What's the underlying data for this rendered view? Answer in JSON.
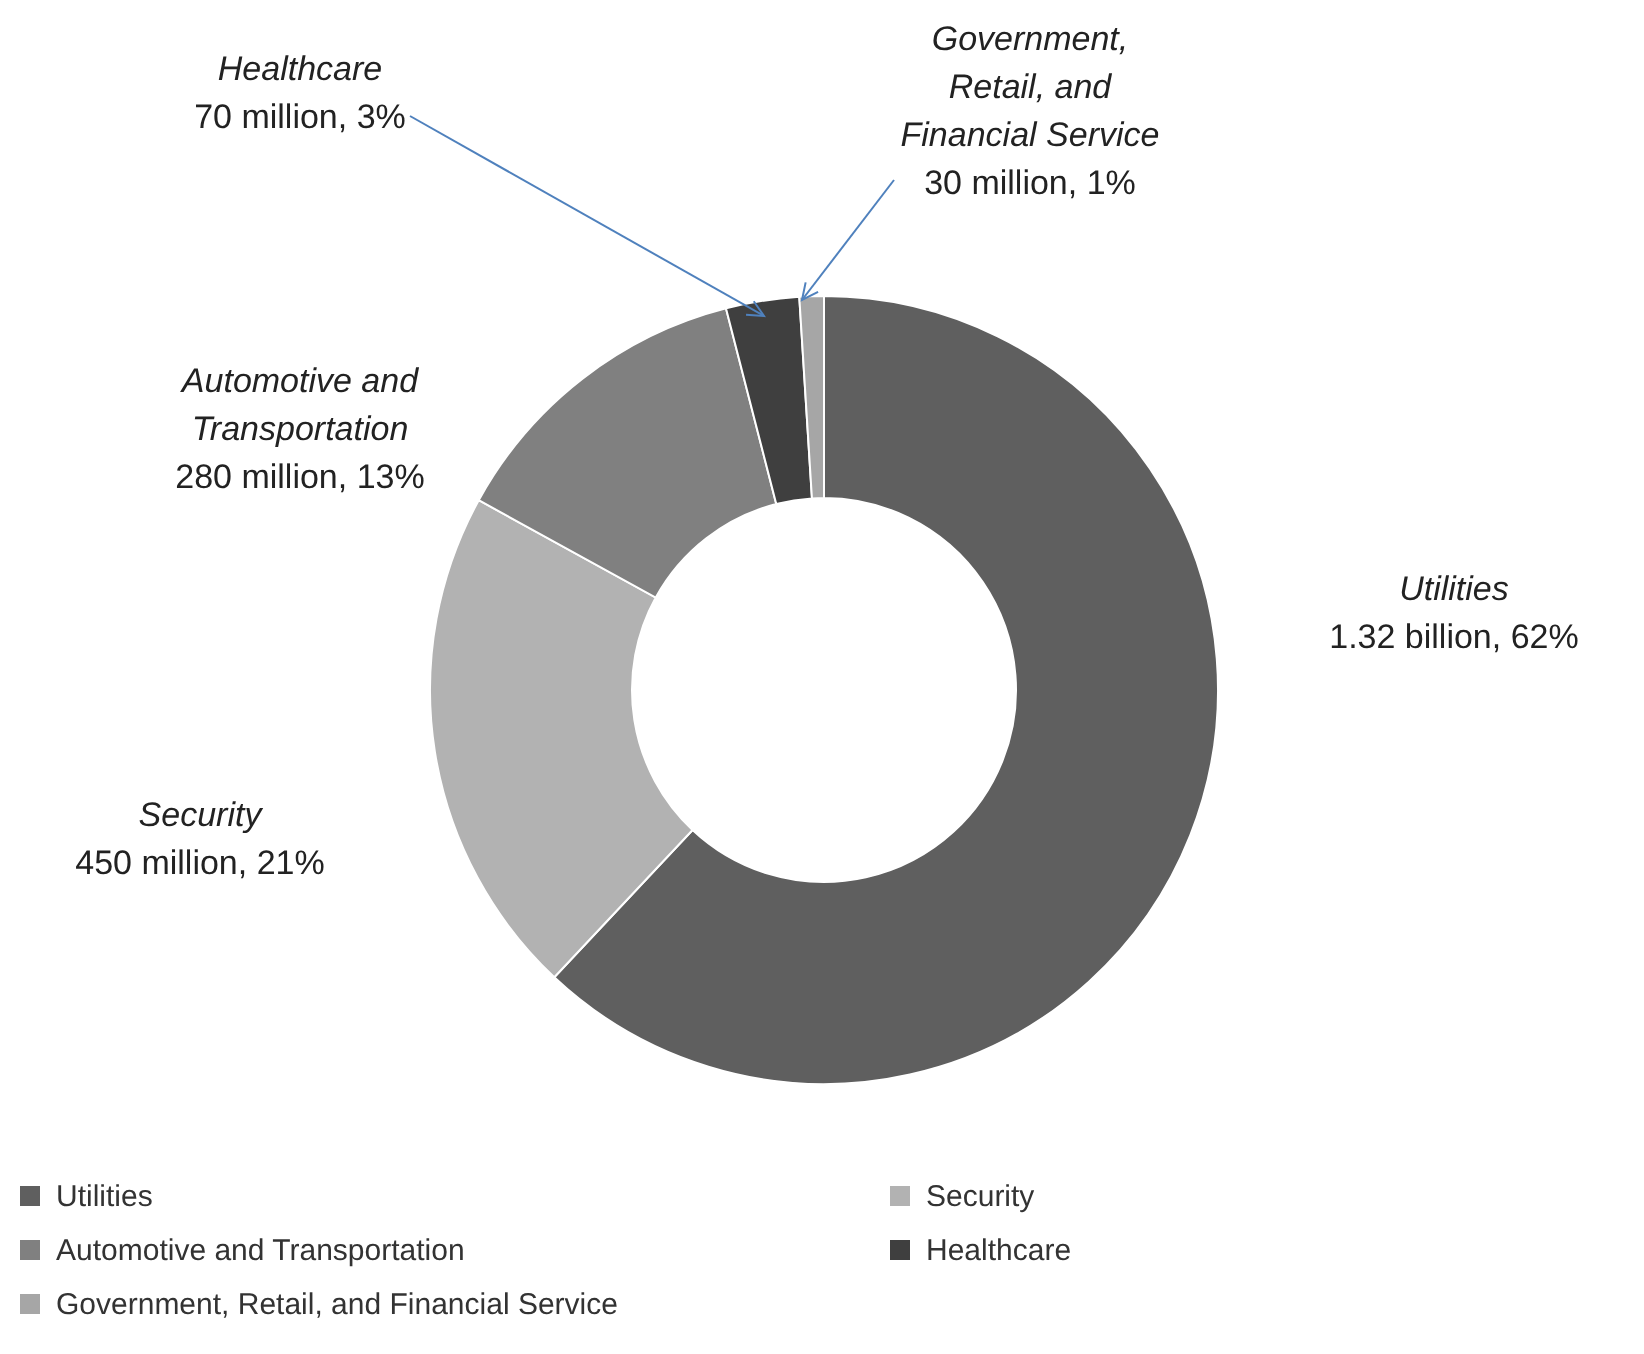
{
  "chart_data": {
    "type": "donut",
    "categories": [
      "Utilities",
      "Security",
      "Automotive and Transportation",
      "Healthcare",
      "Government, Retail, and Financial Service"
    ],
    "values": [
      62,
      21,
      13,
      3,
      1
    ],
    "colors": [
      "#5f5f5f",
      "#b2b2b2",
      "#808080",
      "#3f3f3f",
      "#a6a6a6"
    ],
    "value_labels": [
      "1.32 billion, 62%",
      "450 million, 21%",
      "280 million, 13%",
      "70 million, 3%",
      "30 million, 1%"
    ],
    "legend": "bottom"
  }
}
